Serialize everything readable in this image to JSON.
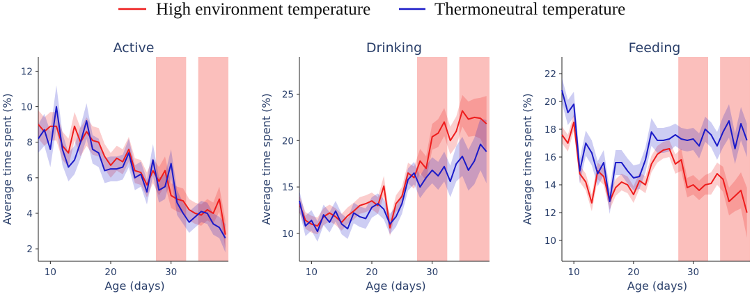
{
  "legend": {
    "high_label": "High environment temperature",
    "thermo_label": "Thermoneutral temperature"
  },
  "colors": {
    "high": "#ee1c1c",
    "thermo": "#1a1ac8",
    "highlight": "#f9a9a5"
  },
  "chart_data": [
    {
      "type": "line",
      "title": "Active",
      "xlabel": "Age (days)",
      "ylabel": "Average time spent (%)",
      "xlim": [
        8,
        39.5
      ],
      "ylim": [
        1.3,
        12.8
      ],
      "xticks": [
        10,
        20,
        30
      ],
      "yticks": [
        2,
        4,
        6,
        8,
        10,
        12
      ],
      "shaded_ranges": [
        [
          27.5,
          32.5
        ],
        [
          34.5,
          39.5
        ]
      ],
      "x": [
        8,
        9,
        10,
        11,
        12,
        13,
        14,
        15,
        16,
        17,
        18,
        19,
        20,
        21,
        22,
        23,
        24,
        25,
        26,
        27,
        28,
        29,
        30,
        31,
        32,
        33,
        34,
        35,
        36,
        37,
        38,
        39
      ],
      "series": [
        {
          "name": "High environment temperature",
          "color": "#ee1c1c",
          "values": [
            9.0,
            8.6,
            8.9,
            8.9,
            7.8,
            7.4,
            8.9,
            8.0,
            8.6,
            8.1,
            8.0,
            7.2,
            6.7,
            7.1,
            6.9,
            7.6,
            6.4,
            6.3,
            5.6,
            6.4,
            5.8,
            6.4,
            5.0,
            4.8,
            4.7,
            4.2,
            4.0,
            3.9,
            4.2,
            4.0,
            4.8,
            2.8
          ],
          "lower": [
            8.2,
            7.8,
            8.1,
            8.1,
            7.0,
            6.6,
            8.1,
            7.2,
            7.8,
            7.3,
            7.2,
            6.5,
            6.0,
            6.4,
            6.2,
            6.9,
            5.7,
            5.6,
            4.9,
            5.7,
            5.0,
            5.6,
            4.3,
            4.1,
            4.0,
            3.6,
            3.4,
            3.3,
            3.6,
            3.4,
            4.1,
            2.0
          ],
          "upper": [
            9.8,
            9.4,
            9.7,
            9.7,
            8.6,
            8.2,
            9.7,
            8.8,
            9.4,
            8.9,
            8.8,
            7.9,
            7.4,
            7.8,
            7.6,
            8.3,
            7.1,
            7.0,
            6.3,
            7.1,
            6.6,
            7.2,
            5.7,
            5.5,
            5.4,
            4.8,
            4.6,
            4.5,
            4.8,
            4.6,
            5.5,
            3.6
          ]
        },
        {
          "name": "Thermoneutral temperature",
          "color": "#1a1ac8",
          "values": [
            8.2,
            8.7,
            7.6,
            10.0,
            7.6,
            6.6,
            7.0,
            8.0,
            9.2,
            7.6,
            7.4,
            6.4,
            6.5,
            6.5,
            6.6,
            7.4,
            6.0,
            6.2,
            5.2,
            7.0,
            5.3,
            5.5,
            6.8,
            4.6,
            4.0,
            3.5,
            3.8,
            4.1,
            4.0,
            3.4,
            3.2,
            2.6
          ],
          "lower": [
            7.4,
            7.8,
            6.6,
            8.8,
            6.7,
            5.8,
            6.2,
            7.1,
            8.2,
            6.8,
            6.6,
            5.7,
            5.8,
            5.8,
            5.9,
            6.6,
            5.3,
            5.5,
            4.5,
            6.1,
            4.6,
            4.8,
            6.0,
            3.9,
            3.4,
            2.9,
            3.2,
            3.5,
            3.4,
            2.8,
            2.6,
            1.8
          ],
          "upper": [
            9.0,
            9.6,
            8.6,
            11.2,
            8.5,
            7.4,
            7.8,
            8.9,
            10.2,
            8.4,
            8.2,
            7.1,
            7.2,
            7.2,
            7.3,
            8.2,
            6.7,
            6.9,
            5.9,
            7.9,
            6.0,
            6.2,
            7.6,
            5.3,
            4.6,
            4.1,
            4.4,
            4.7,
            4.6,
            4.0,
            3.8,
            3.4
          ]
        }
      ]
    },
    {
      "type": "line",
      "title": "Drinking",
      "xlabel": "Age (days)",
      "ylabel": "Average time spent (%)",
      "xlim": [
        8,
        39.5
      ],
      "ylim": [
        7.0,
        29.0
      ],
      "xticks": [
        10,
        20,
        30
      ],
      "yticks": [
        10,
        15,
        20,
        25
      ],
      "shaded_ranges": [
        [
          27.5,
          32.5
        ],
        [
          34.5,
          39.5
        ]
      ],
      "x": [
        8,
        9,
        10,
        11,
        12,
        13,
        14,
        15,
        16,
        17,
        18,
        19,
        20,
        21,
        22,
        23,
        24,
        25,
        26,
        27,
        28,
        29,
        30,
        31,
        32,
        33,
        34,
        35,
        36,
        37,
        38,
        39
      ],
      "series": [
        {
          "name": "High environment temperature",
          "color": "#ee1c1c",
          "values": [
            13.2,
            11.4,
            11.0,
            10.8,
            11.8,
            12.2,
            11.8,
            11.2,
            11.9,
            12.4,
            13.0,
            13.2,
            13.5,
            13.0,
            15.1,
            10.6,
            13.2,
            14.0,
            16.5,
            16.0,
            17.8,
            17.0,
            20.4,
            20.8,
            22.0,
            20.0,
            21.0,
            23.2,
            22.3,
            22.5,
            22.4,
            21.8
          ],
          "lower": [
            12.3,
            10.5,
            10.1,
            9.9,
            10.9,
            11.3,
            10.9,
            10.3,
            11.0,
            11.5,
            12.1,
            12.3,
            12.6,
            12.1,
            14.0,
            9.7,
            12.3,
            13.0,
            15.4,
            14.8,
            16.5,
            15.7,
            19.0,
            19.3,
            20.5,
            18.5,
            19.4,
            21.5,
            20.4,
            20.5,
            20.2,
            18.8
          ],
          "upper": [
            14.1,
            12.3,
            11.9,
            11.7,
            12.7,
            13.1,
            12.7,
            12.1,
            12.8,
            13.3,
            13.9,
            14.1,
            14.4,
            13.9,
            16.2,
            11.5,
            14.1,
            15.0,
            17.6,
            17.2,
            19.1,
            18.3,
            21.8,
            22.3,
            23.5,
            21.5,
            22.6,
            24.9,
            24.2,
            24.5,
            24.6,
            24.8
          ]
        },
        {
          "name": "Thermoneutral temperature",
          "color": "#1a1ac8",
          "values": [
            13.5,
            10.8,
            11.4,
            10.2,
            12.0,
            11.2,
            12.4,
            11.0,
            10.5,
            12.2,
            11.8,
            11.6,
            12.8,
            13.2,
            12.6,
            11.0,
            11.8,
            13.2,
            15.8,
            16.5,
            15.0,
            16.0,
            16.8,
            16.2,
            17.2,
            15.6,
            17.5,
            18.3,
            16.8,
            17.8,
            19.6,
            18.8
          ],
          "lower": [
            12.4,
            9.7,
            10.3,
            9.1,
            10.9,
            10.1,
            11.3,
            9.9,
            9.4,
            11.1,
            10.7,
            10.5,
            11.7,
            12.1,
            11.5,
            9.9,
            10.7,
            12.1,
            14.6,
            15.3,
            13.8,
            14.7,
            15.4,
            14.7,
            15.6,
            13.9,
            15.6,
            16.2,
            14.6,
            15.3,
            16.8,
            15.4
          ],
          "upper": [
            14.6,
            11.9,
            12.5,
            11.3,
            13.1,
            12.3,
            13.5,
            12.1,
            11.6,
            13.3,
            12.9,
            12.7,
            13.9,
            14.3,
            13.7,
            12.1,
            12.9,
            14.3,
            17.0,
            17.7,
            16.2,
            17.3,
            18.2,
            17.7,
            18.8,
            17.3,
            19.4,
            20.4,
            19.0,
            20.3,
            22.4,
            22.2
          ]
        }
      ]
    },
    {
      "type": "line",
      "title": "Feeding",
      "xlabel": "Age (days)",
      "ylabel": "Average time spent (%)",
      "xlim": [
        8,
        39.5
      ],
      "ylim": [
        8.5,
        23.2
      ],
      "xticks": [
        10,
        20,
        30
      ],
      "yticks": [
        10,
        12,
        14,
        16,
        18,
        20,
        22
      ],
      "shaded_ranges": [
        [
          27.5,
          32.5
        ],
        [
          34.5,
          39.5
        ]
      ],
      "x": [
        8,
        9,
        10,
        11,
        12,
        13,
        14,
        15,
        16,
        17,
        18,
        19,
        20,
        21,
        22,
        23,
        24,
        25,
        26,
        27,
        28,
        29,
        30,
        31,
        32,
        33,
        34,
        35,
        36,
        37,
        38,
        39
      ],
      "series": [
        {
          "name": "High environment temperature",
          "color": "#ee1c1c",
          "values": [
            17.6,
            17.0,
            18.5,
            14.8,
            14.2,
            12.7,
            15.0,
            14.6,
            12.8,
            13.8,
            14.2,
            14.0,
            13.3,
            14.3,
            14.0,
            15.5,
            16.2,
            16.5,
            16.6,
            15.5,
            15.8,
            13.8,
            14.0,
            13.6,
            14.0,
            14.1,
            14.8,
            14.4,
            12.8,
            13.2,
            13.6,
            12.0
          ],
          "lower": [
            17.0,
            16.4,
            17.9,
            14.2,
            13.6,
            12.1,
            14.4,
            14.0,
            12.2,
            13.2,
            13.6,
            13.4,
            12.7,
            13.7,
            13.4,
            14.9,
            15.6,
            15.9,
            16.0,
            14.8,
            15.0,
            13.1,
            13.3,
            12.9,
            13.3,
            13.3,
            14.0,
            13.5,
            11.8,
            12.1,
            12.3,
            10.2
          ],
          "upper": [
            18.2,
            17.6,
            19.1,
            15.4,
            14.8,
            13.3,
            15.6,
            15.2,
            13.4,
            14.4,
            14.8,
            14.6,
            13.9,
            14.9,
            14.6,
            16.1,
            16.8,
            17.1,
            17.2,
            16.2,
            16.6,
            14.5,
            14.7,
            14.3,
            14.7,
            14.9,
            15.6,
            15.3,
            13.8,
            14.3,
            14.9,
            13.8
          ]
        },
        {
          "name": "Thermoneutral temperature",
          "color": "#1a1ac8",
          "values": [
            20.8,
            19.2,
            19.8,
            15.0,
            17.0,
            16.3,
            14.8,
            15.6,
            12.8,
            15.6,
            15.6,
            15.0,
            14.5,
            14.6,
            15.8,
            17.8,
            17.2,
            17.2,
            17.3,
            17.6,
            17.3,
            17.2,
            17.3,
            16.8,
            18.0,
            17.6,
            16.8,
            17.8,
            18.6,
            16.6,
            18.4,
            17.2
          ],
          "lower": [
            19.9,
            18.3,
            18.9,
            14.1,
            16.1,
            15.4,
            13.9,
            14.7,
            11.9,
            14.7,
            14.7,
            14.1,
            13.6,
            13.7,
            14.9,
            16.8,
            16.3,
            16.3,
            16.4,
            16.8,
            16.5,
            16.4,
            16.5,
            15.9,
            17.1,
            16.7,
            15.8,
            16.7,
            17.4,
            15.5,
            17.2,
            16.0
          ],
          "upper": [
            21.7,
            20.1,
            20.7,
            15.9,
            17.9,
            17.2,
            15.7,
            16.5,
            13.7,
            16.5,
            16.5,
            15.9,
            15.4,
            15.5,
            16.7,
            18.8,
            18.1,
            18.1,
            18.2,
            18.4,
            18.1,
            18.0,
            18.1,
            17.7,
            18.9,
            18.5,
            17.8,
            18.9,
            19.8,
            17.7,
            19.6,
            18.4
          ]
        }
      ]
    }
  ]
}
